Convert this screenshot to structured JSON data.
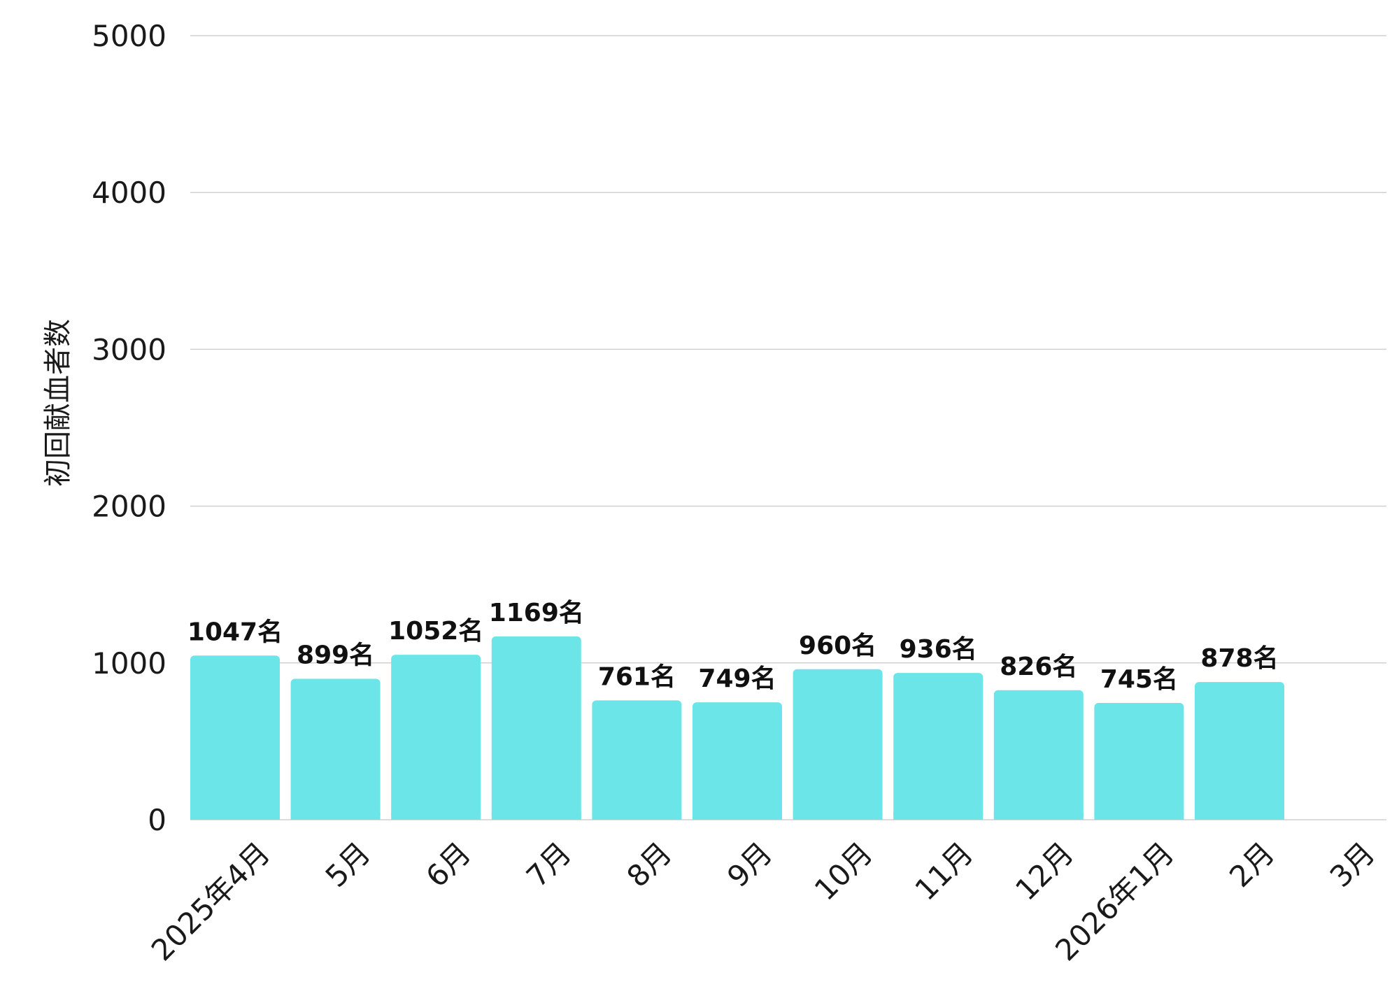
{
  "chart_data": {
    "type": "bar",
    "ylabel": "初回献血者数",
    "ylim": [
      0,
      5000
    ],
    "yticks": [
      "0",
      "1000",
      "2000",
      "3000",
      "4000",
      "5000"
    ],
    "grid": true,
    "bar_color": "#6ce5e8",
    "categories": [
      "2025年4月",
      "5月",
      "6月",
      "7月",
      "8月",
      "9月",
      "10月",
      "11月",
      "12月",
      "2026年1月",
      "2月",
      "3月"
    ],
    "values": [
      1047,
      899,
      1052,
      1169,
      761,
      749,
      960,
      936,
      826,
      745,
      878,
      null
    ],
    "data_labels": [
      "1047名",
      "899名",
      "1052名",
      "1169名",
      "761名",
      "749名",
      "960名",
      "936名",
      "826名",
      "745名",
      "878名",
      ""
    ]
  }
}
